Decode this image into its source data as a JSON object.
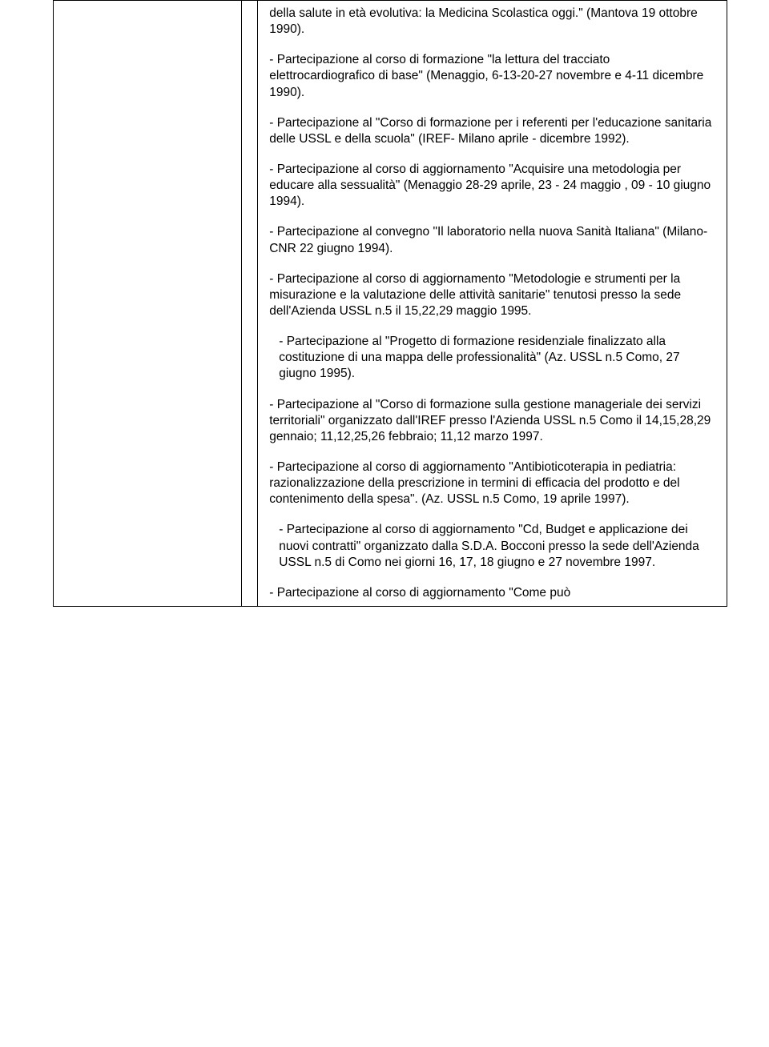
{
  "font": {
    "family": "Arial",
    "size_pt": 12,
    "color": "#000000"
  },
  "page": {
    "background": "#ffffff",
    "border_color": "#000000"
  },
  "paragraphs": [
    {
      "text": "della salute in età evolutiva: la Medicina Scolastica oggi.\" (Mantova 19 ottobre 1990).",
      "indent": false
    },
    {
      "text": "- Partecipazione al corso di formazione \"la lettura del tracciato elettrocardiografico di base\" (Menaggio, 6-13-20-27 novembre e 4-11 dicembre 1990).",
      "indent": false
    },
    {
      "text": "- Partecipazione al \"Corso di formazione per i referenti per l'educazione sanitaria delle USSL e della scuola\" (IREF- Milano aprile - dicembre 1992).",
      "indent": false
    },
    {
      "text": "- Partecipazione al corso di aggiornamento \"Acquisire una metodologia per educare alla sessualità\" (Menaggio 28-29 aprile, 23 - 24 maggio , 09 - 10 giugno 1994).",
      "indent": false
    },
    {
      "text": "- Partecipazione al convegno \"Il laboratorio nella nuova Sanità Italiana\" (Milano-CNR 22 giugno 1994).",
      "indent": false
    },
    {
      "text": "- Partecipazione al corso di aggiornamento \"Metodologie e strumenti per la misurazione e la valutazione delle attività sanitarie\" tenutosi presso la sede dell'Azienda USSL n.5 il 15,22,29 maggio 1995.",
      "indent": false
    },
    {
      "text": "- Partecipazione al \"Progetto di formazione residenziale finalizzato alla costituzione di una mappa delle professionalità\" (Az. USSL n.5 Como, 27 giugno 1995).",
      "indent": true
    },
    {
      "text": "- Partecipazione al \"Corso di formazione sulla gestione manageriale dei servizi territoriali\" organizzato dall'IREF presso l'Azienda USSL n.5 Como il 14,15,28,29 gennaio; 11,12,25,26 febbraio; 11,12 marzo 1997.",
      "indent": false
    },
    {
      "text": "- Partecipazione al corso di aggiornamento \"Antibioticoterapia in pediatria: razionalizzazione della prescrizione in termini di efficacia del prodotto e del contenimento della spesa\". (Az. USSL n.5 Como, 19 aprile 1997).",
      "indent": false
    },
    {
      "text": "- Partecipazione al corso di aggiornamento \"Cd, Budget e applicazione dei nuovi contratti\" organizzato dalla S.D.A. Bocconi presso la sede dell'Azienda USSL n.5 di Como nei giorni 16, 17, 18 giugno e 27 novembre 1997.",
      "indent": true
    },
    {
      "text": "- Partecipazione al corso di aggiornamento \"Come può",
      "indent": false
    }
  ]
}
